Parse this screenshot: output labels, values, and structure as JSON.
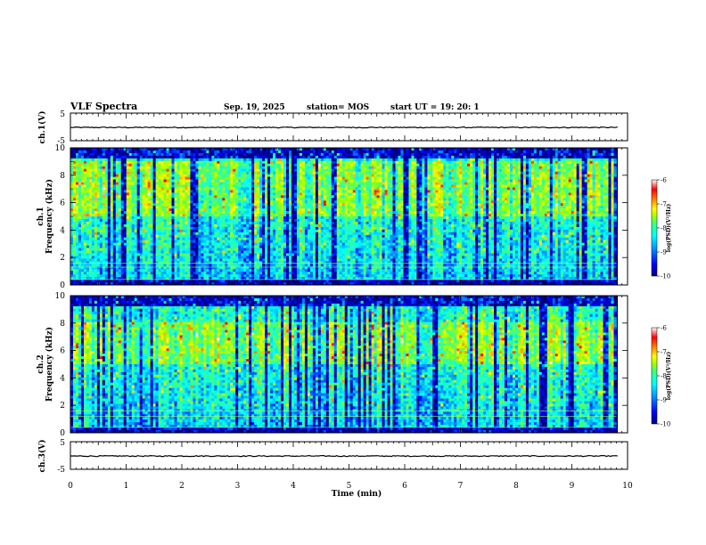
{
  "header": {
    "title": "VLF Spectra",
    "date": "Sep. 19, 2025",
    "station": "station= MOS",
    "start": "start  UT =   19: 20: 1"
  },
  "colors": {
    "scale": [
      "#00007f",
      "#0000ff",
      "#00a0ff",
      "#00ffff",
      "#40ff80",
      "#a0ff00",
      "#ffff00",
      "#ff8000",
      "#ff0000",
      "#ffffff"
    ],
    "background": "#000000"
  },
  "chart_data": [
    {
      "type": "line",
      "title": "",
      "ylabel": "ch.1(V)",
      "xlim": [
        0,
        10
      ],
      "ylim": [
        -5,
        5
      ],
      "yticks": [
        "5",
        "-5"
      ],
      "description_value": "flat trace near -0.2 V",
      "level": -0.2
    },
    {
      "type": "heatmap",
      "ylabel_line1": "ch.1",
      "ylabel_line2": "Frequency (kHz)",
      "xlim": [
        0,
        9.8
      ],
      "ylim": [
        0,
        10
      ],
      "yticks": [
        "0",
        "2",
        "4",
        "6",
        "8",
        "10"
      ],
      "peak_band_khz": [
        5,
        9
      ],
      "hum_lines_khz": [
        0.4,
        1.3,
        1.6
      ],
      "colorbar": {
        "label": "log(PSD)(V²/Hz)",
        "ticks": [
          "-6",
          "-7",
          "-8",
          "-9",
          "-10"
        ],
        "range": [
          -10,
          -6
        ]
      }
    },
    {
      "type": "heatmap",
      "ylabel_line1": "ch.2",
      "ylabel_line2": "Frequency (kHz)",
      "xlim": [
        0,
        9.8
      ],
      "ylim": [
        0,
        10
      ],
      "yticks": [
        "0",
        "2",
        "4",
        "6",
        "8",
        "10"
      ],
      "peak_band_khz": [
        5,
        8
      ],
      "hum_lines_khz": [
        0.4,
        1.2,
        1.6
      ],
      "colorbar": {
        "label": "log(PSD)(V²/Hz)",
        "ticks": [
          "-6",
          "-7",
          "-8",
          "-9",
          "-10"
        ],
        "range": [
          -10,
          -6
        ]
      }
    },
    {
      "type": "line",
      "ylabel": "ch.3(V)",
      "xlim": [
        0,
        10
      ],
      "ylim": [
        -5,
        5
      ],
      "yticks": [
        "5",
        "-5"
      ],
      "level": -0.2
    }
  ],
  "xaxis": {
    "label": "Time (min)",
    "ticks": [
      "0",
      "1",
      "2",
      "3",
      "4",
      "5",
      "6",
      "7",
      "8",
      "9",
      "10"
    ],
    "range": [
      0,
      10
    ]
  }
}
